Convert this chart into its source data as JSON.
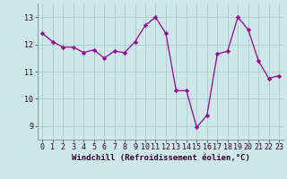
{
  "x": [
    0,
    1,
    2,
    3,
    4,
    5,
    6,
    7,
    8,
    9,
    10,
    11,
    12,
    13,
    14,
    15,
    16,
    17,
    18,
    19,
    20,
    21,
    22,
    23
  ],
  "y": [
    12.4,
    12.1,
    11.9,
    11.9,
    11.7,
    11.8,
    11.5,
    11.75,
    11.7,
    12.1,
    12.7,
    13.0,
    12.4,
    10.3,
    10.3,
    8.95,
    9.4,
    11.65,
    11.75,
    13.0,
    12.55,
    11.4,
    10.75,
    10.85
  ],
  "line_color": "#990099",
  "marker": "D",
  "marker_size": 2.2,
  "bg_color": "#cce8e8",
  "grid_color": "#aacccc",
  "xlabel": "Windchill (Refroidissement éolien,°C)",
  "xlabel_fontsize": 6.5,
  "tick_fontsize": 6.0,
  "ylim": [
    8.5,
    13.5
  ],
  "yticks": [
    9,
    10,
    11,
    12,
    13
  ],
  "xlim": [
    -0.5,
    23.5
  ],
  "xticks": [
    0,
    1,
    2,
    3,
    4,
    5,
    6,
    7,
    8,
    9,
    10,
    11,
    12,
    13,
    14,
    15,
    16,
    17,
    18,
    19,
    20,
    21,
    22,
    23
  ]
}
